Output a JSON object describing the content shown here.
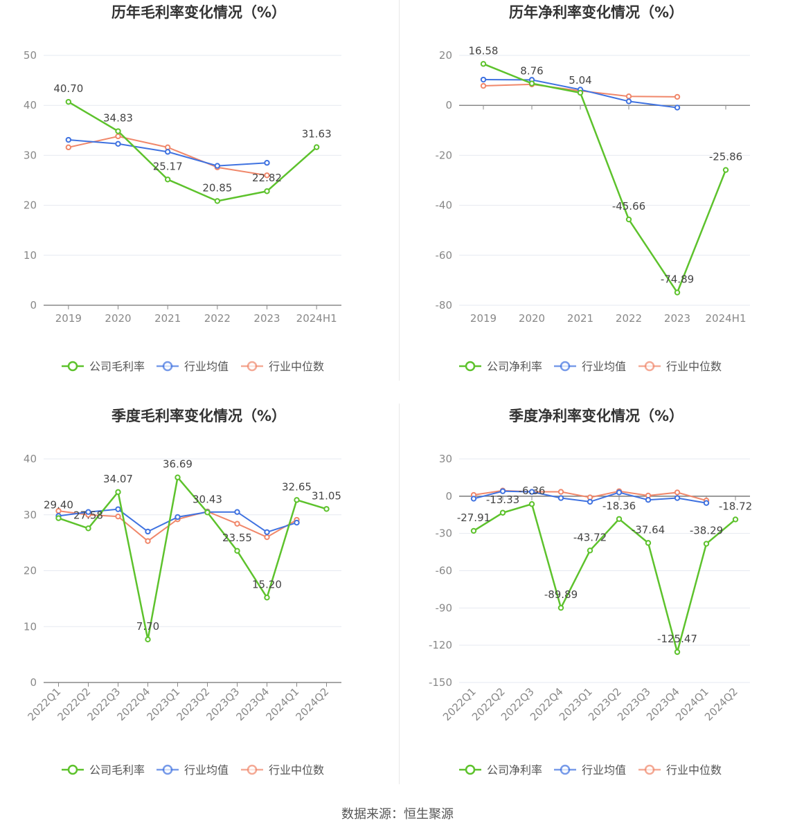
{
  "source": "数据来源：恒生聚源",
  "colors": {
    "company": "#5dc22c",
    "avg": "#3f72e0",
    "median": "#f0876a"
  },
  "chart_data": [
    {
      "type": "line",
      "title": "历年毛利率变化情况（%）",
      "categories": [
        "2019",
        "2020",
        "2021",
        "2022",
        "2023",
        "2024H1"
      ],
      "ylim": [
        0,
        50
      ],
      "yticks": [
        0,
        10,
        20,
        30,
        40,
        50
      ],
      "legend_position": "bottom",
      "series": [
        {
          "name": "公司毛利率",
          "key": "company",
          "values": [
            40.7,
            34.83,
            25.17,
            20.85,
            22.82,
            31.63
          ],
          "labels": [
            "40.70",
            "34.83",
            "25.17",
            "20.85",
            "22.82",
            "31.63"
          ]
        },
        {
          "name": "行业均值",
          "key": "avg",
          "values": [
            33.1,
            32.3,
            30.7,
            27.9,
            28.5,
            null
          ]
        },
        {
          "name": "行业中位数",
          "key": "median",
          "values": [
            31.6,
            33.8,
            31.6,
            27.6,
            26.0,
            null
          ]
        }
      ]
    },
    {
      "type": "line",
      "title": "历年净利率变化情况（%）",
      "categories": [
        "2019",
        "2020",
        "2021",
        "2022",
        "2023",
        "2024H1"
      ],
      "ylim": [
        -80,
        20
      ],
      "yticks": [
        -80,
        -60,
        -40,
        -20,
        0,
        20
      ],
      "legend_position": "bottom",
      "series": [
        {
          "name": "公司净利率",
          "key": "company",
          "values": [
            16.58,
            8.76,
            5.04,
            -45.66,
            -74.89,
            -25.86
          ],
          "labels": [
            "16.58",
            "8.76",
            "5.04",
            "-45.66",
            "-74.89",
            "-25.86"
          ]
        },
        {
          "name": "行业均值",
          "key": "avg",
          "values": [
            10.3,
            10.2,
            6.3,
            1.6,
            -0.9,
            null
          ]
        },
        {
          "name": "行业中位数",
          "key": "median",
          "values": [
            7.8,
            8.4,
            5.8,
            3.6,
            3.4,
            null
          ]
        }
      ]
    },
    {
      "type": "line",
      "title": "季度毛利率变化情况（%）",
      "categories": [
        "2022Q1",
        "2022Q2",
        "2022Q3",
        "2022Q4",
        "2023Q1",
        "2023Q2",
        "2023Q3",
        "2023Q4",
        "2024Q1",
        "2024Q2"
      ],
      "ylim": [
        0,
        40
      ],
      "yticks": [
        0,
        10,
        20,
        30,
        40
      ],
      "legend_position": "bottom",
      "series": [
        {
          "name": "公司毛利率",
          "key": "company",
          "values": [
            29.4,
            27.58,
            34.07,
            7.7,
            36.69,
            30.43,
            23.55,
            15.2,
            32.65,
            31.05
          ],
          "labels": [
            "29.40",
            "27.58",
            "34.07",
            "7.70",
            "36.69",
            "30.43",
            "23.55",
            "15.20",
            "32.65",
            "31.05"
          ]
        },
        {
          "name": "行业均值",
          "key": "avg",
          "values": [
            29.8,
            30.5,
            31.0,
            27.0,
            29.6,
            30.5,
            30.5,
            26.9,
            28.6,
            null
          ]
        },
        {
          "name": "行业中位数",
          "key": "median",
          "values": [
            30.7,
            30.0,
            29.7,
            25.3,
            29.2,
            30.6,
            28.4,
            26.0,
            29.1,
            null
          ]
        }
      ]
    },
    {
      "type": "line",
      "title": "季度净利率变化情况（%）",
      "categories": [
        "2022Q1",
        "2022Q2",
        "2022Q3",
        "2022Q4",
        "2023Q1",
        "2023Q2",
        "2023Q3",
        "2023Q4",
        "2024Q1",
        "2024Q2"
      ],
      "ylim": [
        -150,
        30
      ],
      "yticks": [
        -150,
        -120,
        -90,
        -60,
        -30,
        0,
        30
      ],
      "legend_position": "bottom",
      "series": [
        {
          "name": "公司净利率",
          "key": "company",
          "values": [
            -27.91,
            -13.33,
            -6.36,
            -89.89,
            -43.72,
            -18.36,
            -37.64,
            -125.47,
            -38.29,
            -18.72
          ],
          "labels": [
            "-27.91",
            "-13.33",
            "-6.36",
            "-89.89",
            "-43.72",
            "-18.36",
            "-37.64",
            "-125.47",
            "-38.29",
            "-18.72"
          ]
        },
        {
          "name": "行业均值",
          "key": "avg",
          "values": [
            -2.0,
            4.0,
            3.5,
            -1.5,
            -4.5,
            3.0,
            -3.0,
            -1.5,
            -5.5,
            null
          ]
        },
        {
          "name": "行业中位数",
          "key": "median",
          "values": [
            1.0,
            4.5,
            3.5,
            3.5,
            -1.0,
            4.0,
            0.5,
            3.0,
            -3.5,
            null
          ]
        }
      ]
    }
  ]
}
